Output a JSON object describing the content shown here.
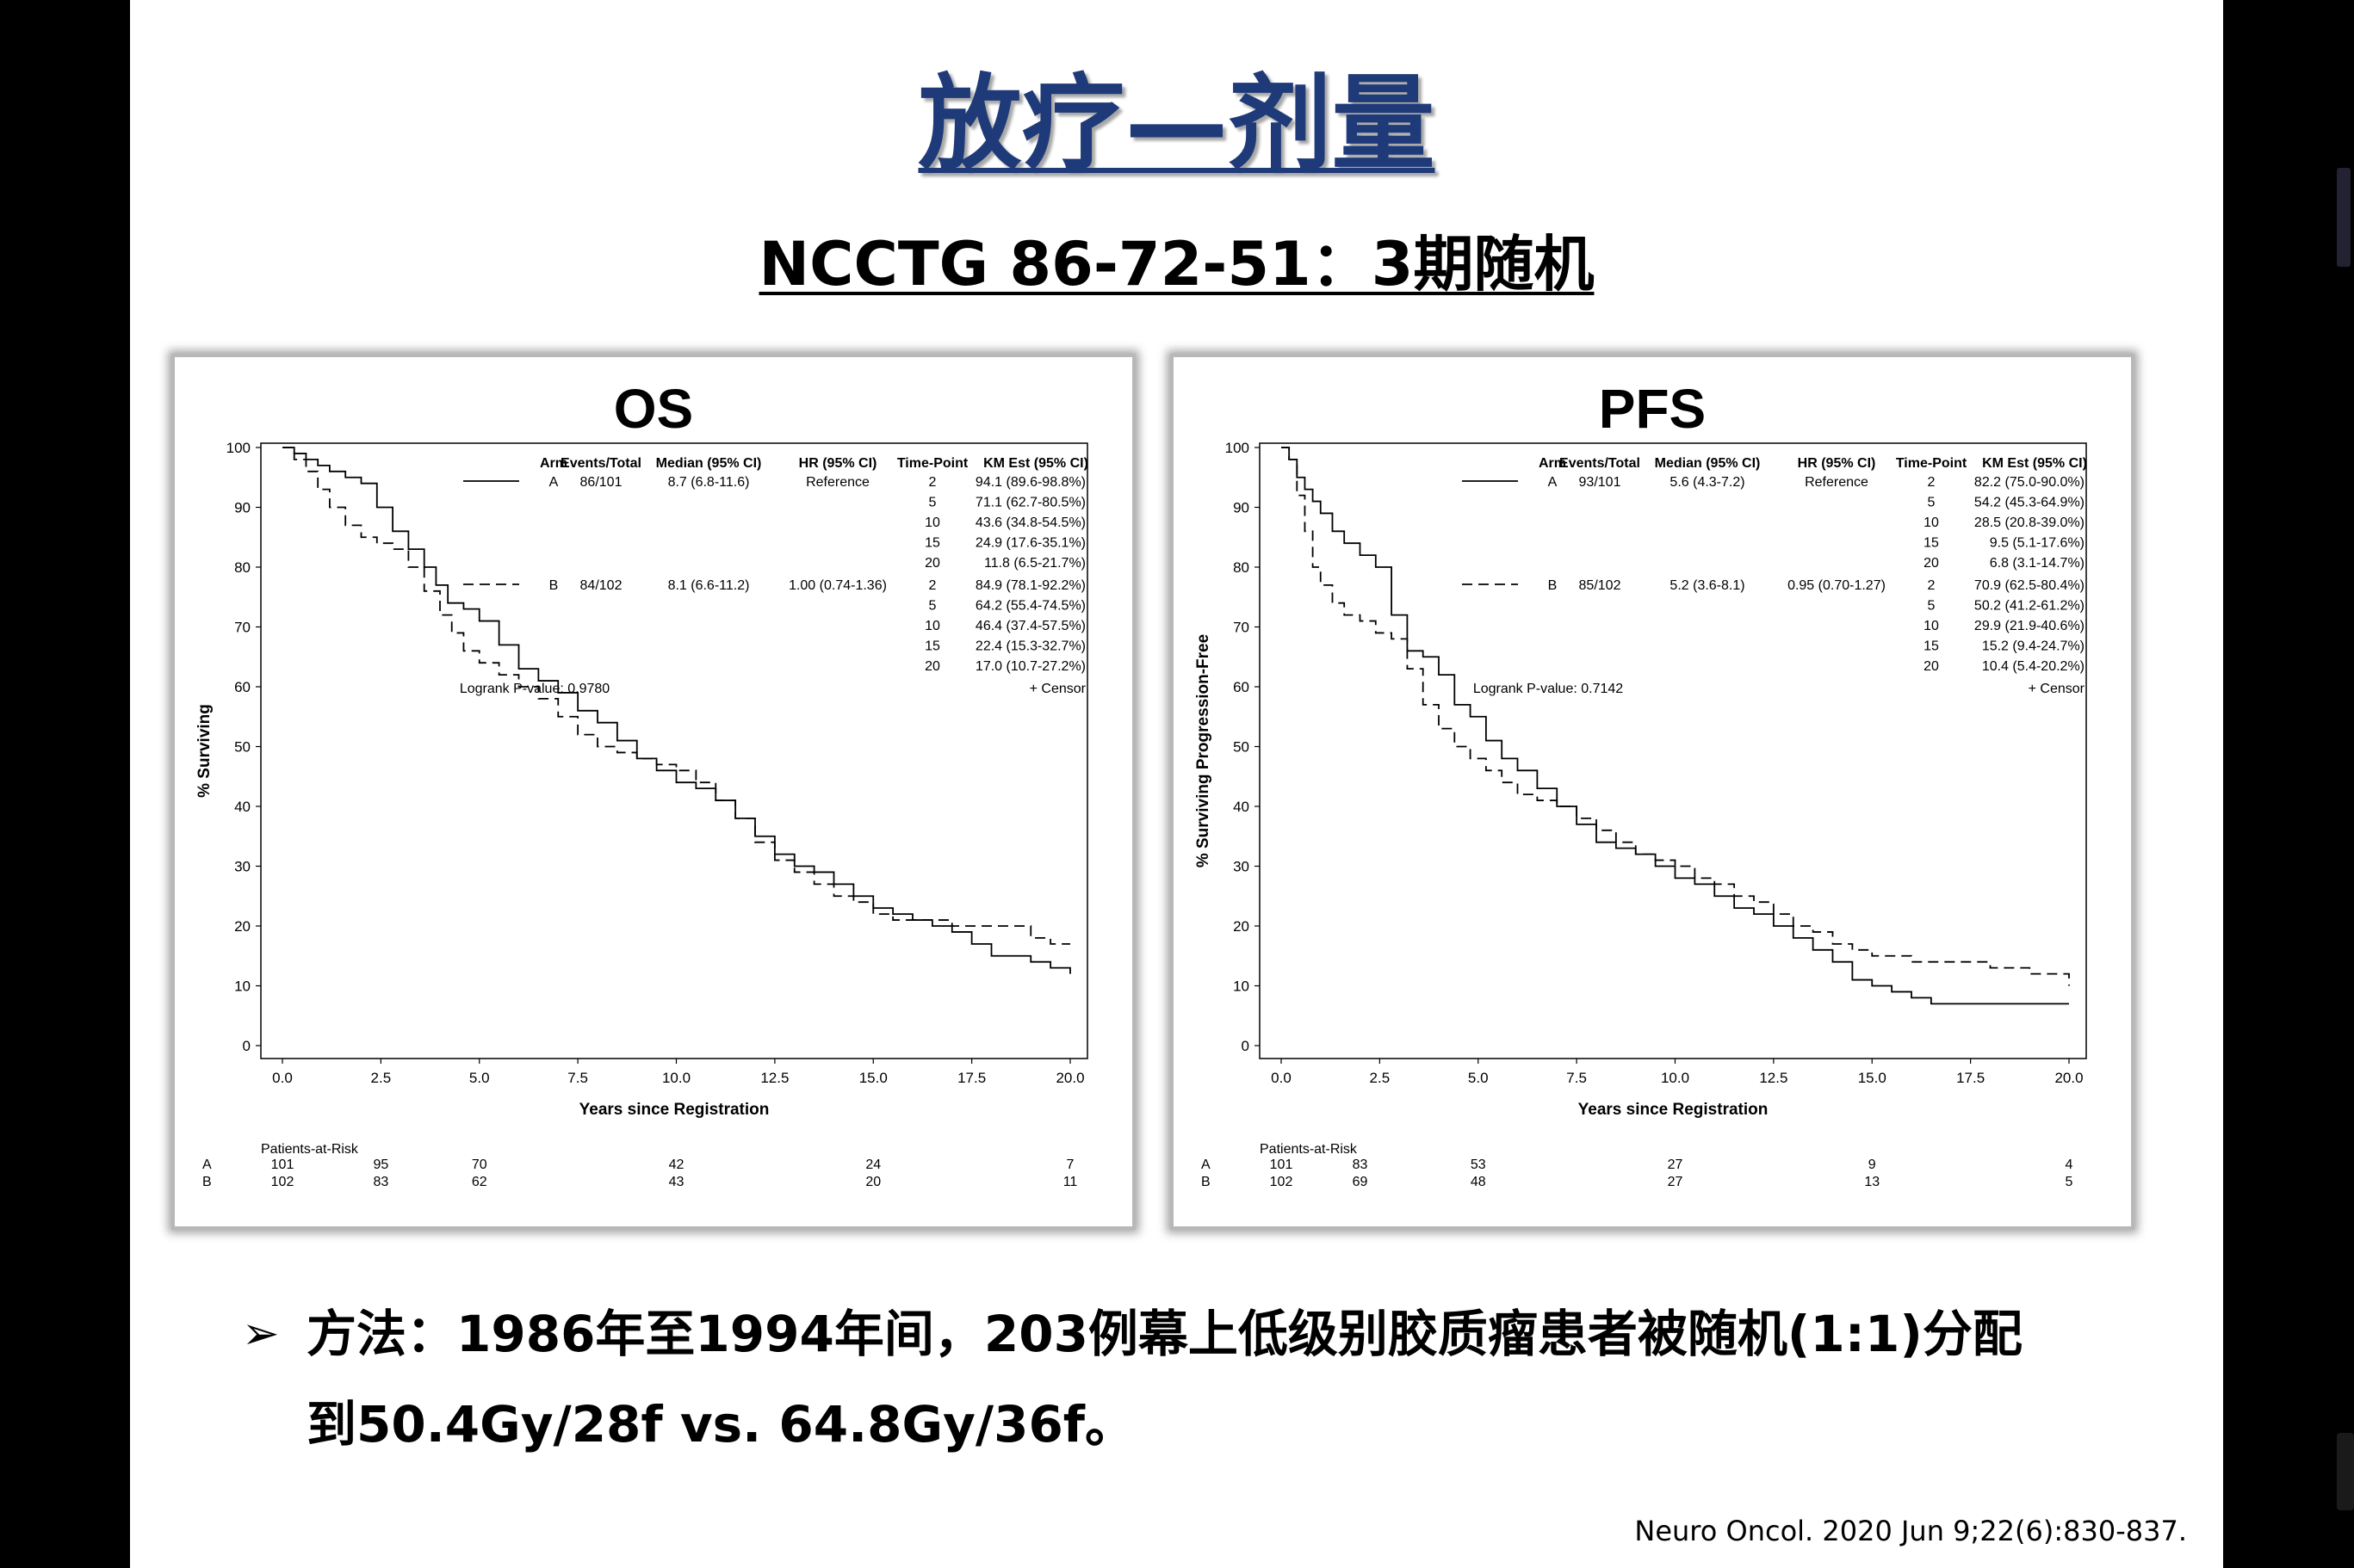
{
  "slide": {
    "title": "放疗—剂量",
    "subtitle": "NCCTG 86-72-51：3期随机",
    "bullet_marker": "➢",
    "bullet_line1": "方法：1986年至1994年间，203例幕上低级别胶质瘤患者被随机(1:1)分配",
    "bullet_line2": "到50.4Gy/28f vs. 64.8Gy/36f。",
    "citation": "Neuro Oncol. 2020 Jun 9;22(6):830-837."
  },
  "chart_data": [
    {
      "type": "line",
      "title": "OS",
      "xlabel": "Years since Registration",
      "ylabel": "% Surviving",
      "xlim": [
        0,
        20
      ],
      "ylim": [
        0,
        100
      ],
      "xticks": [
        "0.0",
        "2.5",
        "5.0",
        "7.5",
        "10.0",
        "12.5",
        "15.0",
        "17.5",
        "20.0"
      ],
      "yticks": [
        "0",
        "10",
        "20",
        "30",
        "40",
        "50",
        "60",
        "70",
        "80",
        "90",
        "100"
      ],
      "table_header": [
        "Arm",
        "Events/Total",
        "Median (95% CI)",
        "HR (95% CI)",
        "Time-Point",
        "KM Est (95% CI)"
      ],
      "legend_rows": [
        {
          "arm": "A",
          "events": "86/101",
          "median": "8.7 (6.8-11.6)",
          "hr": "Reference",
          "points": [
            [
              "2",
              "94.1 (89.6-98.8%)"
            ],
            [
              "5",
              "71.1 (62.7-80.5%)"
            ],
            [
              "10",
              "43.6 (34.8-54.5%)"
            ],
            [
              "15",
              "24.9 (17.6-35.1%)"
            ],
            [
              "20",
              "11.8 (6.5-21.7%)"
            ]
          ]
        },
        {
          "arm": "B",
          "events": "84/102",
          "median": "8.1 (6.6-11.2)",
          "hr": "1.00 (0.74-1.36)",
          "points": [
            [
              "2",
              "84.9 (78.1-92.2%)"
            ],
            [
              "5",
              "64.2 (55.4-74.5%)"
            ],
            [
              "10",
              "46.4 (37.4-57.5%)"
            ],
            [
              "15",
              "22.4 (15.3-32.7%)"
            ],
            [
              "20",
              "17.0 (10.7-27.2%)"
            ]
          ]
        }
      ],
      "logrank": "Logrank P-value: 0.9780",
      "censor_label": "+  Censor",
      "risk_title": "Patients-at-Risk",
      "risk_times": [
        0,
        2.5,
        5,
        10,
        15,
        20
      ],
      "risk": [
        {
          "arm": "A",
          "values": [
            "101",
            "95",
            "70",
            "42",
            "24",
            "7"
          ]
        },
        {
          "arm": "B",
          "values": [
            "102",
            "83",
            "62",
            "43",
            "20",
            "11"
          ]
        }
      ],
      "series": [
        {
          "name": "A",
          "style": "solid",
          "x": [
            0,
            0.3,
            0.6,
            0.9,
            1.2,
            1.6,
            2.0,
            2.4,
            2.8,
            3.2,
            3.6,
            3.9,
            4.2,
            4.6,
            5.0,
            5.5,
            6.0,
            6.5,
            7.0,
            7.5,
            8.0,
            8.5,
            9.0,
            9.5,
            10.0,
            10.5,
            11.0,
            11.5,
            12.0,
            12.5,
            13.0,
            13.5,
            14.0,
            14.5,
            15.0,
            15.5,
            16.0,
            16.5,
            17.0,
            17.5,
            18.0,
            18.5,
            19.0,
            19.5,
            20.0
          ],
          "y": [
            100,
            99,
            98,
            97,
            96,
            95,
            94,
            90,
            86,
            83,
            80,
            77,
            74,
            73,
            71,
            67,
            63,
            61,
            59,
            56,
            54,
            51,
            48,
            46,
            44,
            43,
            41,
            38,
            35,
            32,
            30,
            29,
            27,
            25,
            23,
            22,
            21,
            20,
            19,
            17,
            15,
            15,
            14,
            13,
            12
          ]
        },
        {
          "name": "B",
          "style": "dashed",
          "x": [
            0,
            0.3,
            0.6,
            0.9,
            1.2,
            1.6,
            2.0,
            2.4,
            2.8,
            3.2,
            3.6,
            4.0,
            4.3,
            4.6,
            5.0,
            5.5,
            6.0,
            6.5,
            7.0,
            7.5,
            8.0,
            8.5,
            9.0,
            9.5,
            10.0,
            10.5,
            11.0,
            11.5,
            12.0,
            12.5,
            13.0,
            13.5,
            14.0,
            14.5,
            15.0,
            15.5,
            16.0,
            16.5,
            17.0,
            17.5,
            18.0,
            18.5,
            19.0,
            19.5,
            20.0
          ],
          "y": [
            100,
            98,
            96,
            93,
            90,
            87,
            85,
            84,
            83,
            80,
            76,
            72,
            69,
            66,
            64,
            62,
            60,
            58,
            55,
            52,
            50,
            49,
            48,
            47,
            46,
            44,
            41,
            38,
            34,
            31,
            29,
            27,
            25,
            24,
            22,
            21,
            21,
            21,
            20,
            20,
            20,
            20,
            18,
            17,
            17
          ]
        }
      ]
    },
    {
      "type": "line",
      "title": "PFS",
      "xlabel": "Years since Registration",
      "ylabel": "% Surviving Progression-Free",
      "xlim": [
        0,
        20
      ],
      "ylim": [
        0,
        100
      ],
      "xticks": [
        "0.0",
        "2.5",
        "5.0",
        "7.5",
        "10.0",
        "12.5",
        "15.0",
        "17.5",
        "20.0"
      ],
      "yticks": [
        "0",
        "10",
        "20",
        "30",
        "40",
        "50",
        "60",
        "70",
        "80",
        "90",
        "100"
      ],
      "table_header": [
        "Arm",
        "Events/Total",
        "Median (95% CI)",
        "HR (95% CI)",
        "Time-Point",
        "KM Est (95% CI)"
      ],
      "legend_rows": [
        {
          "arm": "A",
          "events": "93/101",
          "median": "5.6 (4.3-7.2)",
          "hr": "Reference",
          "points": [
            [
              "2",
              "82.2 (75.0-90.0%)"
            ],
            [
              "5",
              "54.2 (45.3-64.9%)"
            ],
            [
              "10",
              "28.5 (20.8-39.0%)"
            ],
            [
              "15",
              "9.5 (5.1-17.6%)"
            ],
            [
              "20",
              "6.8 (3.1-14.7%)"
            ]
          ]
        },
        {
          "arm": "B",
          "events": "85/102",
          "median": "5.2 (3.6-8.1)",
          "hr": "0.95 (0.70-1.27)",
          "points": [
            [
              "2",
              "70.9 (62.5-80.4%)"
            ],
            [
              "5",
              "50.2 (41.2-61.2%)"
            ],
            [
              "10",
              "29.9 (21.9-40.6%)"
            ],
            [
              "15",
              "15.2 (9.4-24.7%)"
            ],
            [
              "20",
              "10.4 (5.4-20.2%)"
            ]
          ]
        }
      ],
      "logrank": "Logrank P-value: 0.7142",
      "censor_label": "+  Censor",
      "risk_title": "Patients-at-Risk",
      "risk_times": [
        0,
        2,
        5,
        10,
        15,
        20
      ],
      "risk": [
        {
          "arm": "A",
          "values": [
            "101",
            "83",
            "53",
            "27",
            "9",
            "4"
          ]
        },
        {
          "arm": "B",
          "values": [
            "102",
            "69",
            "48",
            "27",
            "13",
            "5"
          ]
        }
      ],
      "series": [
        {
          "name": "A",
          "style": "solid",
          "x": [
            0,
            0.2,
            0.4,
            0.6,
            0.8,
            1.0,
            1.3,
            1.6,
            2.0,
            2.4,
            2.8,
            3.2,
            3.6,
            4.0,
            4.4,
            4.8,
            5.2,
            5.6,
            6.0,
            6.5,
            7.0,
            7.5,
            8.0,
            8.5,
            9.0,
            9.5,
            10.0,
            10.5,
            11.0,
            11.5,
            12.0,
            12.5,
            13.0,
            13.5,
            14.0,
            14.5,
            15.0,
            15.5,
            16.0,
            16.5,
            17.0,
            18.0,
            19.0,
            20.0
          ],
          "y": [
            100,
            98,
            95,
            93,
            91,
            89,
            86,
            84,
            82,
            80,
            72,
            66,
            65,
            62,
            57,
            55,
            51,
            48,
            46,
            43,
            40,
            37,
            34,
            33,
            32,
            30,
            28,
            27,
            25,
            23,
            22,
            20,
            18,
            16,
            14,
            11,
            10,
            9,
            8,
            7,
            7,
            7,
            7,
            7
          ]
        },
        {
          "name": "B",
          "style": "dashed",
          "x": [
            0,
            0.2,
            0.4,
            0.6,
            0.8,
            1.0,
            1.3,
            1.6,
            2.0,
            2.4,
            2.8,
            3.2,
            3.6,
            4.0,
            4.4,
            4.8,
            5.2,
            5.6,
            6.0,
            6.5,
            7.0,
            7.5,
            8.0,
            8.5,
            9.0,
            9.5,
            10.0,
            10.5,
            11.0,
            11.5,
            12.0,
            12.5,
            13.0,
            13.5,
            14.0,
            14.5,
            15.0,
            15.5,
            16.0,
            16.5,
            17.0,
            18.0,
            19.0,
            20.0
          ],
          "y": [
            100,
            98,
            92,
            86,
            80,
            77,
            74,
            72,
            71,
            69,
            68,
            63,
            57,
            53,
            50,
            48,
            46,
            44,
            42,
            41,
            40,
            38,
            36,
            34,
            32,
            31,
            30,
            28,
            27,
            25,
            24,
            22,
            20,
            19,
            17,
            16,
            15,
            15,
            14,
            14,
            14,
            13,
            12,
            10
          ]
        }
      ]
    }
  ]
}
